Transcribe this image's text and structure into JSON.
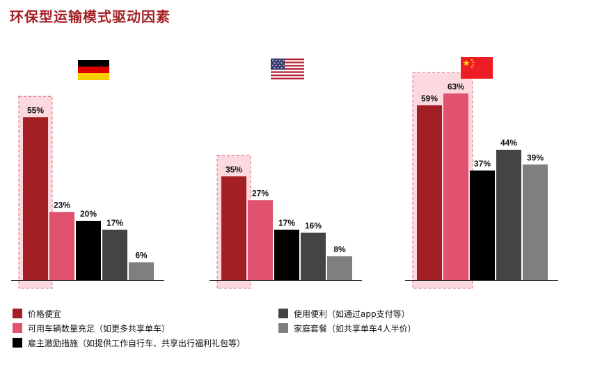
{
  "title": "环保型运输模式驱动因素",
  "colors": {
    "title": "#a32225",
    "highlight_fill": "#fbd9df",
    "highlight_border": "#e06a7a"
  },
  "chart_data": {
    "type": "bar",
    "series": [
      {
        "name": "价格便宜",
        "color": "#a41f24"
      },
      {
        "name": "可用车辆数量充足（如更多共享单车）",
        "color": "#e0526d"
      },
      {
        "name": "雇主激励措施（如提供工作自行车、共享出行福利礼包等）",
        "color": "#000000"
      },
      {
        "name": "使用便利（如通过app支付等）",
        "color": "#444444"
      },
      {
        "name": "家庭套餐（如共享单车4人半价）",
        "color": "#7f7f7f"
      }
    ],
    "groups": [
      {
        "flag": "germany-flag",
        "values": [
          55,
          23,
          20,
          17,
          6
        ],
        "labels": [
          "55%",
          "23%",
          "20%",
          "17%",
          "6%"
        ],
        "highlight": [
          0
        ]
      },
      {
        "flag": "usa-flag",
        "values": [
          35,
          27,
          17,
          16,
          8
        ],
        "labels": [
          "35%",
          "27%",
          "17%",
          "16%",
          "8%"
        ],
        "highlight": [
          0
        ]
      },
      {
        "flag": "china-flag",
        "values": [
          59,
          63,
          37,
          44,
          39
        ],
        "labels": [
          "59%",
          "63%",
          "37%",
          "44%",
          "39%"
        ],
        "highlight": [
          0,
          1
        ]
      }
    ],
    "ylim": [
      0,
      100
    ]
  },
  "legend": {
    "left": [
      {
        "label": "价格便宜",
        "color": "#a41f24"
      },
      {
        "label": "可用车辆数量充足（如更多共享单车）",
        "color": "#e0526d"
      },
      {
        "label": "雇主激励措施（如提供工作自行车、共享出行福利礼包等）",
        "color": "#000000"
      }
    ],
    "right": [
      {
        "label": "使用便利（如通过app支付等）",
        "color": "#444444"
      },
      {
        "label": "家庭套餐（如共享单车4人半价）",
        "color": "#7f7f7f"
      }
    ]
  }
}
